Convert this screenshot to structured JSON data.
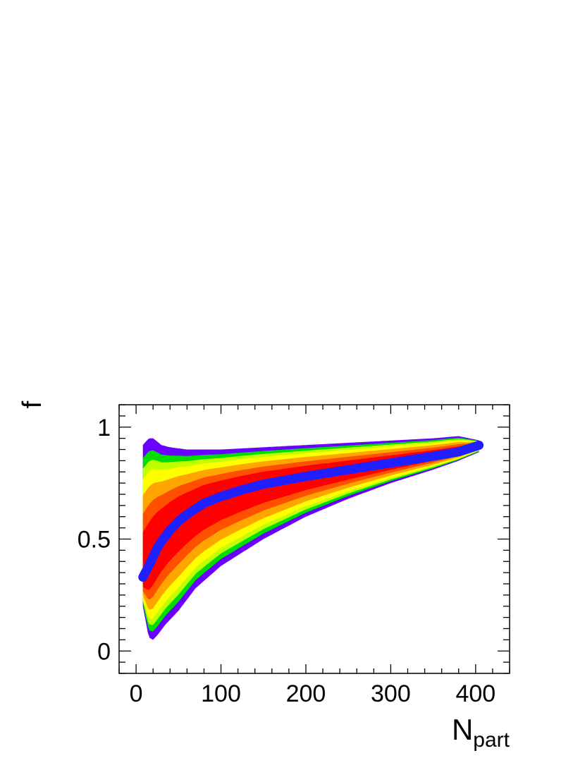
{
  "chart_data": {
    "type": "heatmap",
    "xlabel": "N",
    "xlabel_subscript": "part",
    "ylabel": "f",
    "xlim": [
      -20,
      440
    ],
    "ylim": [
      -0.1,
      1.1
    ],
    "x_ticks": [
      0,
      100,
      200,
      300,
      400
    ],
    "x_tick_labels": [
      "0",
      "100",
      "200",
      "300",
      "400"
    ],
    "y_ticks": [
      0,
      0.5,
      1
    ],
    "y_tick_labels": [
      "0",
      "0.5",
      "1"
    ],
    "grid": false,
    "legend": "none",
    "colormap": [
      "#6a00ff",
      "#00dd00",
      "#bfff00",
      "#ffff00",
      "#ffa500",
      "#ff5000",
      "#ff0000"
    ],
    "ridge_color": "#1f1fff",
    "ridge": {
      "x": [
        8,
        15,
        20,
        25,
        30,
        40,
        50,
        60,
        80,
        100,
        125,
        150,
        200,
        250,
        300,
        350,
        380,
        405
      ],
      "y": [
        0.33,
        0.38,
        0.42,
        0.46,
        0.49,
        0.54,
        0.58,
        0.61,
        0.66,
        0.69,
        0.72,
        0.745,
        0.78,
        0.81,
        0.84,
        0.87,
        0.89,
        0.92
      ]
    },
    "outer_upper": {
      "x": [
        8,
        15,
        20,
        30,
        40,
        60,
        100,
        150,
        200,
        250,
        300,
        350,
        380,
        405
      ],
      "y": [
        0.92,
        0.95,
        0.95,
        0.92,
        0.91,
        0.9,
        0.9,
        0.91,
        0.92,
        0.93,
        0.94,
        0.95,
        0.96,
        0.94
      ]
    },
    "outer_lower": {
      "x": [
        8,
        15,
        20,
        25,
        35,
        50,
        70,
        100,
        150,
        200,
        250,
        300,
        350,
        380,
        405
      ],
      "y": [
        0.2,
        0.06,
        0.05,
        0.07,
        0.12,
        0.18,
        0.28,
        0.38,
        0.5,
        0.6,
        0.68,
        0.75,
        0.81,
        0.85,
        0.89
      ]
    }
  }
}
